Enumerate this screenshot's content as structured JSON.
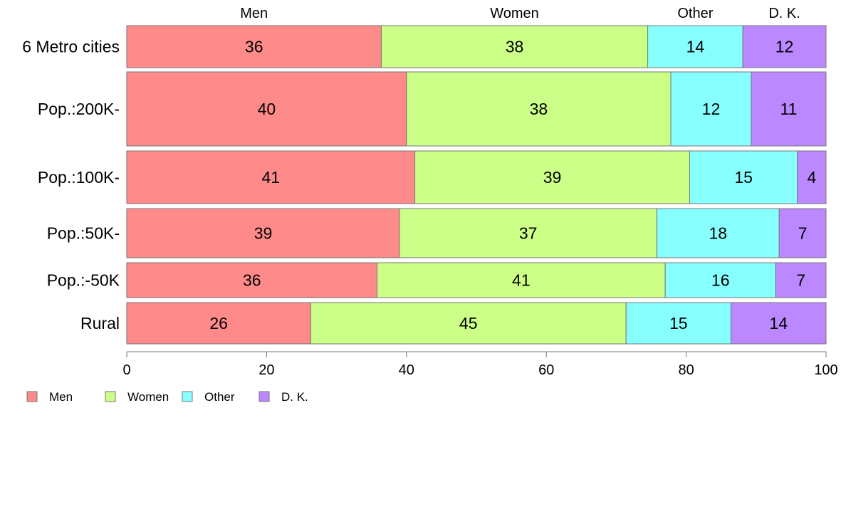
{
  "chart_data": {
    "type": "bar",
    "orientation": "horizontal",
    "stacked": true,
    "categories": [
      "6 Metro cities",
      "Pop.:200K-",
      "Pop.:100K-",
      "Pop.:50K-",
      "Pop.:-50K",
      "Rural"
    ],
    "series": [
      {
        "name": "Men",
        "color": "#ff8a8a",
        "values": [
          36.4,
          40.0,
          41.2,
          39.0,
          35.8,
          26.3
        ]
      },
      {
        "name": "Women",
        "color": "#ccff88",
        "values": [
          38.1,
          37.8,
          39.3,
          36.8,
          41.2,
          45.1
        ]
      },
      {
        "name": "Other",
        "color": "#88ffff",
        "values": [
          13.6,
          11.5,
          15.4,
          17.5,
          15.8,
          15.0
        ]
      },
      {
        "name": "D. K.",
        "color": "#bb88ff",
        "values": [
          11.9,
          10.7,
          4.1,
          6.7,
          7.2,
          13.6
        ]
      }
    ],
    "data_labels": [
      [
        "36",
        "38",
        "14",
        "12"
      ],
      [
        "40",
        "38",
        "12",
        "11"
      ],
      [
        "41",
        "39",
        "15",
        "4"
      ],
      [
        "39",
        "37",
        "18",
        "7"
      ],
      [
        "36",
        "41",
        "16",
        "7"
      ],
      [
        "26",
        "45",
        "15",
        "14"
      ]
    ],
    "column_headers": [
      "Men",
      "Women",
      "Other",
      "D. K."
    ],
    "xlim": [
      0,
      100
    ],
    "xticks": [
      0,
      20,
      40,
      60,
      80,
      100
    ],
    "xtick_labels": [
      "0",
      "20",
      "40",
      "60",
      "80",
      "100"
    ],
    "legend": {
      "position": "bottom-left",
      "entries": [
        "Men",
        "Women",
        "Other",
        "D. K."
      ]
    },
    "grid": false
  }
}
